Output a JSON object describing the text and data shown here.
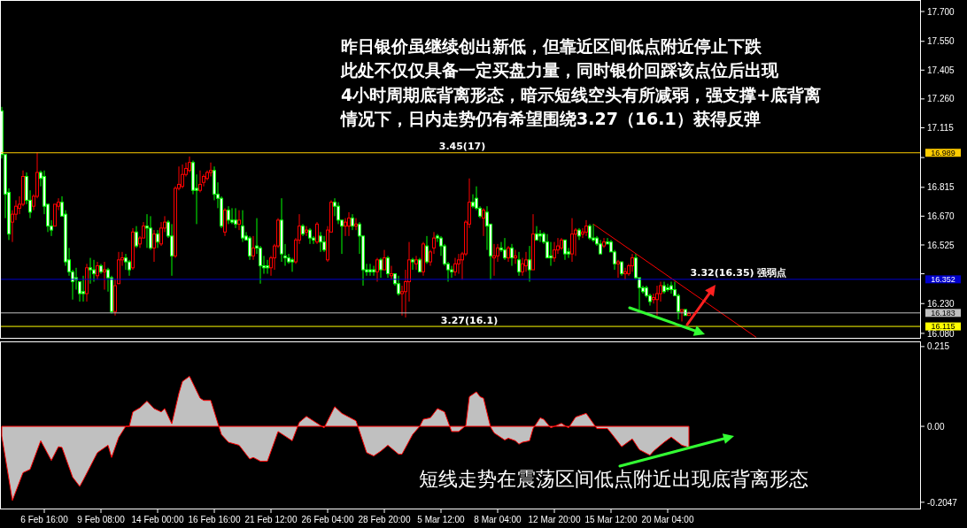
{
  "chart_data": [
    {
      "type": "candlestick",
      "categories": [
        null,
        null,
        null,
        null,
        null,
        null,
        null,
        null,
        null,
        null,
        null,
        null,
        null,
        null,
        null,
        null,
        null,
        null,
        null,
        null,
        null,
        null,
        null,
        null,
        null,
        null,
        null,
        null,
        null,
        null,
        null,
        null,
        null,
        null,
        null,
        null,
        null,
        null,
        null,
        null,
        null,
        null,
        null,
        null,
        null,
        null,
        null,
        null,
        null,
        null,
        null,
        null,
        null,
        null,
        null,
        null,
        null,
        null,
        null,
        null,
        null,
        null,
        null,
        null,
        null,
        null,
        null,
        null,
        null,
        null,
        null,
        null,
        null,
        null,
        null,
        null,
        null,
        null,
        null,
        null,
        null,
        null,
        null,
        null,
        null,
        null,
        null,
        null,
        null,
        null,
        null,
        null,
        null,
        null,
        null,
        null,
        null,
        null,
        null,
        null,
        null,
        null,
        null,
        null,
        null,
        null,
        null,
        null,
        null,
        null,
        null,
        null,
        null,
        null,
        null,
        null,
        null,
        null,
        null,
        null,
        null,
        null,
        null,
        null,
        null,
        null,
        null,
        null,
        null,
        null,
        null,
        null,
        null,
        null,
        null,
        null,
        null,
        null,
        null,
        null,
        null,
        null,
        null,
        null,
        null,
        null,
        null,
        null,
        null,
        null,
        null,
        null,
        null,
        null,
        null,
        null,
        null,
        null,
        null,
        null,
        null,
        null,
        null,
        null,
        null,
        null,
        null,
        null,
        null,
        null,
        null,
        null,
        null,
        null,
        null,
        null,
        null,
        null,
        null,
        null,
        null,
        null,
        null,
        null,
        null,
        null,
        null,
        null,
        null,
        null,
        null,
        null,
        null,
        null,
        null,
        null,
        null,
        null,
        null,
        null,
        null,
        null,
        null,
        null,
        null,
        null,
        null,
        null,
        null,
        null,
        null,
        null,
        null,
        null,
        null,
        null,
        null,
        null,
        null,
        null,
        null,
        null,
        null,
        null,
        null,
        null,
        null,
        null,
        null,
        null,
        null,
        null,
        null,
        null,
        null,
        null,
        null,
        null,
        null,
        null,
        null,
        null,
        null,
        null,
        null,
        null,
        null,
        null,
        null,
        null,
        null,
        null,
        null,
        null,
        null,
        null,
        null,
        null,
        null,
        null
      ],
      "ohlc": [
        [
          17.2,
          17.22,
          16.96,
          16.98
        ],
        [
          16.98,
          16.98,
          16.66,
          16.78
        ],
        [
          16.79,
          16.81,
          16.55,
          16.58
        ],
        [
          16.64,
          16.7,
          16.54,
          16.68
        ],
        [
          16.68,
          16.75,
          16.65,
          16.72
        ],
        [
          16.71,
          16.77,
          16.68,
          16.73
        ],
        [
          16.73,
          16.9,
          16.72,
          16.87
        ],
        [
          16.87,
          16.89,
          16.73,
          16.75
        ],
        [
          16.75,
          16.8,
          16.66,
          16.69
        ],
        [
          16.72,
          16.78,
          16.7,
          16.77
        ],
        [
          16.77,
          16.99,
          16.76,
          16.89
        ],
        [
          16.89,
          16.9,
          16.82,
          16.86
        ],
        [
          16.87,
          16.9,
          16.68,
          16.72
        ],
        [
          16.73,
          16.73,
          16.59,
          16.62
        ],
        [
          16.62,
          16.65,
          16.57,
          16.6
        ],
        [
          16.62,
          16.73,
          16.62,
          16.73
        ],
        [
          16.72,
          16.76,
          16.7,
          16.74
        ],
        [
          16.74,
          16.77,
          16.67,
          16.67
        ],
        [
          16.68,
          16.7,
          16.42,
          16.44
        ],
        [
          16.45,
          16.51,
          16.37,
          16.39
        ],
        [
          16.39,
          16.4,
          16.25,
          16.34
        ],
        [
          16.36,
          16.41,
          16.3,
          16.35
        ],
        [
          16.34,
          16.34,
          16.24,
          16.28
        ],
        [
          16.29,
          16.37,
          16.24,
          16.28
        ],
        [
          16.28,
          16.43,
          16.24,
          16.41
        ],
        [
          16.41,
          16.46,
          16.33,
          16.4
        ],
        [
          16.4,
          16.45,
          16.34,
          16.38
        ],
        [
          16.37,
          16.44,
          16.35,
          16.42
        ],
        [
          16.42,
          16.43,
          16.38,
          16.39
        ],
        [
          16.39,
          16.44,
          16.3,
          16.4
        ],
        [
          16.4,
          16.41,
          16.29,
          16.36
        ],
        [
          16.36,
          16.37,
          16.18,
          16.19
        ],
        [
          16.19,
          16.35,
          16.17,
          16.32
        ],
        [
          16.33,
          16.49,
          16.33,
          16.45
        ],
        [
          16.45,
          16.49,
          16.42,
          16.46
        ],
        [
          16.46,
          16.48,
          16.4,
          16.44
        ],
        [
          16.44,
          16.45,
          16.37,
          16.4
        ],
        [
          16.41,
          16.61,
          16.4,
          16.59
        ],
        [
          16.59,
          16.62,
          16.51,
          16.52
        ],
        [
          16.53,
          16.57,
          16.51,
          16.56
        ],
        [
          16.56,
          16.64,
          16.56,
          16.62
        ],
        [
          16.62,
          16.68,
          16.51,
          16.61
        ],
        [
          16.61,
          16.67,
          16.5,
          16.51
        ],
        [
          16.51,
          16.6,
          16.44,
          16.58
        ],
        [
          16.58,
          16.6,
          16.51,
          16.54
        ],
        [
          16.53,
          16.64,
          16.52,
          16.61
        ],
        [
          16.61,
          16.67,
          16.59,
          16.64
        ],
        [
          16.64,
          16.65,
          16.56,
          16.57
        ],
        [
          16.57,
          16.63,
          16.37,
          16.47
        ],
        [
          16.47,
          16.82,
          16.46,
          16.81
        ],
        [
          16.81,
          16.92,
          16.8,
          16.83
        ],
        [
          16.82,
          16.93,
          16.81,
          16.88
        ],
        [
          16.88,
          16.94,
          16.87,
          16.91
        ],
        [
          16.9,
          16.97,
          16.89,
          16.94
        ],
        [
          16.94,
          16.95,
          16.78,
          16.8
        ],
        [
          16.81,
          16.88,
          16.63,
          16.8
        ],
        [
          16.8,
          16.9,
          16.79,
          16.83
        ],
        [
          16.84,
          16.88,
          16.82,
          16.87
        ],
        [
          16.86,
          16.9,
          16.85,
          16.89
        ],
        [
          16.89,
          16.94,
          16.87,
          16.9
        ],
        [
          16.9,
          16.92,
          16.75,
          16.78
        ],
        [
          16.78,
          16.84,
          16.71,
          16.76
        ],
        [
          16.76,
          16.77,
          16.61,
          16.62
        ],
        [
          16.59,
          16.71,
          16.57,
          16.7
        ],
        [
          16.7,
          16.72,
          16.63,
          16.65
        ],
        [
          16.65,
          16.71,
          16.63,
          16.64
        ],
        [
          16.65,
          16.71,
          16.61,
          16.63
        ],
        [
          16.63,
          16.7,
          16.6,
          16.65
        ],
        [
          16.62,
          16.7,
          16.54,
          16.56
        ],
        [
          16.57,
          16.59,
          16.55,
          16.55
        ],
        [
          16.56,
          16.57,
          16.45,
          16.47
        ],
        [
          16.47,
          16.57,
          16.45,
          16.51
        ],
        [
          16.52,
          16.66,
          16.48,
          16.51
        ],
        [
          16.51,
          16.52,
          16.33,
          16.42
        ],
        [
          16.42,
          16.47,
          16.38,
          16.41
        ],
        [
          16.42,
          16.45,
          16.38,
          16.41
        ],
        [
          16.41,
          16.47,
          16.37,
          16.46
        ],
        [
          16.46,
          16.53,
          16.4,
          16.52
        ],
        [
          16.52,
          16.66,
          16.51,
          16.65
        ],
        [
          16.65,
          16.76,
          16.44,
          16.48
        ],
        [
          16.47,
          16.53,
          16.42,
          16.46
        ],
        [
          16.46,
          16.48,
          16.43,
          16.44
        ],
        [
          16.45,
          16.46,
          16.39,
          16.44
        ],
        [
          16.44,
          16.56,
          16.43,
          16.55
        ],
        [
          16.55,
          16.68,
          16.53,
          16.62
        ],
        [
          16.62,
          16.63,
          16.57,
          16.58
        ],
        [
          16.59,
          16.62,
          16.57,
          16.6
        ],
        [
          16.6,
          16.61,
          16.53,
          16.56
        ],
        [
          16.56,
          16.57,
          16.53,
          16.55
        ],
        [
          16.54,
          16.64,
          16.53,
          16.63
        ],
        [
          16.57,
          16.59,
          16.49,
          16.54
        ],
        [
          16.54,
          16.57,
          16.49,
          16.5
        ],
        [
          16.45,
          16.62,
          16.44,
          16.6
        ],
        [
          16.59,
          16.75,
          16.59,
          16.74
        ],
        [
          16.74,
          16.76,
          16.67,
          16.72
        ],
        [
          16.72,
          16.74,
          16.63,
          16.65
        ],
        [
          16.65,
          16.65,
          16.48,
          16.62
        ],
        [
          16.62,
          16.66,
          16.57,
          16.64
        ],
        [
          16.62,
          16.69,
          16.57,
          16.66
        ],
        [
          16.66,
          16.68,
          16.6,
          16.62
        ],
        [
          16.62,
          16.66,
          16.6,
          16.63
        ],
        [
          16.63,
          16.64,
          16.48,
          16.57
        ],
        [
          16.57,
          16.57,
          16.32,
          16.4
        ],
        [
          16.4,
          16.43,
          16.37,
          16.39
        ],
        [
          16.4,
          16.43,
          16.37,
          16.39
        ],
        [
          16.4,
          16.42,
          16.37,
          16.39
        ],
        [
          16.39,
          16.46,
          16.34,
          16.45
        ],
        [
          16.45,
          16.46,
          16.36,
          16.4
        ],
        [
          16.4,
          16.5,
          16.4,
          16.46
        ],
        [
          16.46,
          16.47,
          16.36,
          16.38
        ],
        [
          16.37,
          16.42,
          16.35,
          16.38
        ],
        [
          16.38,
          16.38,
          16.32,
          16.33
        ],
        [
          16.33,
          16.37,
          16.27,
          16.28
        ],
        [
          16.28,
          16.32,
          16.17,
          16.29
        ],
        [
          16.29,
          16.4,
          16.16,
          16.34
        ],
        [
          16.34,
          16.54,
          16.24,
          16.45
        ],
        [
          16.45,
          16.46,
          16.4,
          16.44
        ],
        [
          16.43,
          16.47,
          16.4,
          16.45
        ],
        [
          16.45,
          16.46,
          16.39,
          16.39
        ],
        [
          16.39,
          16.54,
          16.37,
          16.53
        ],
        [
          16.52,
          16.57,
          16.43,
          16.44
        ],
        [
          16.44,
          16.5,
          16.42,
          16.49
        ],
        [
          16.51,
          16.59,
          16.48,
          16.56
        ],
        [
          16.57,
          16.58,
          16.54,
          16.56
        ],
        [
          16.56,
          16.57,
          16.47,
          16.52
        ],
        [
          16.52,
          16.53,
          16.42,
          16.43
        ],
        [
          16.43,
          16.44,
          16.34,
          16.4
        ],
        [
          16.4,
          16.42,
          16.36,
          16.39
        ],
        [
          16.39,
          16.46,
          16.37,
          16.43
        ],
        [
          16.43,
          16.48,
          16.38,
          16.45
        ],
        [
          16.45,
          16.49,
          16.35,
          16.48
        ],
        [
          16.48,
          16.65,
          16.47,
          16.64
        ],
        [
          16.63,
          16.86,
          16.61,
          16.74
        ],
        [
          16.74,
          16.78,
          16.71,
          16.72
        ],
        [
          16.76,
          16.82,
          16.7,
          16.71
        ],
        [
          16.71,
          16.72,
          16.66,
          16.67
        ],
        [
          16.66,
          16.71,
          16.57,
          16.7
        ],
        [
          16.69,
          16.72,
          16.5,
          16.62
        ],
        [
          16.63,
          16.63,
          16.35,
          16.47
        ],
        [
          16.46,
          16.53,
          16.37,
          16.47
        ],
        [
          16.47,
          16.53,
          16.44,
          16.51
        ],
        [
          16.51,
          16.54,
          16.49,
          16.5
        ],
        [
          16.5,
          16.56,
          16.45,
          16.46
        ],
        [
          16.46,
          16.52,
          16.44,
          16.51
        ],
        [
          16.51,
          16.53,
          16.42,
          16.46
        ],
        [
          16.46,
          16.5,
          16.43,
          16.47
        ],
        [
          16.45,
          16.49,
          16.37,
          16.39
        ],
        [
          16.39,
          16.46,
          16.37,
          16.43
        ],
        [
          16.42,
          16.49,
          16.39,
          16.45
        ],
        [
          16.45,
          16.52,
          16.34,
          16.4
        ],
        [
          16.4,
          16.68,
          16.4,
          16.58
        ],
        [
          16.58,
          16.62,
          16.55,
          16.55
        ],
        [
          16.58,
          16.6,
          16.54,
          16.57
        ],
        [
          16.58,
          16.59,
          16.53,
          16.54
        ],
        [
          16.54,
          16.58,
          16.46,
          16.46
        ],
        [
          16.47,
          16.54,
          16.42,
          16.46
        ],
        [
          16.46,
          16.54,
          16.44,
          16.5
        ],
        [
          16.5,
          16.56,
          16.48,
          16.52
        ],
        [
          16.51,
          16.56,
          16.5,
          16.55
        ],
        [
          16.55,
          16.55,
          16.45,
          16.48
        ],
        [
          16.49,
          16.51,
          16.46,
          16.48
        ],
        [
          16.48,
          16.66,
          16.44,
          16.58
        ],
        [
          16.58,
          16.61,
          16.47,
          16.6
        ],
        [
          16.6,
          16.61,
          16.55,
          16.57
        ],
        [
          16.58,
          16.61,
          16.56,
          16.59
        ],
        [
          16.59,
          16.65,
          16.57,
          16.62
        ],
        [
          16.62,
          16.63,
          16.55,
          16.56
        ],
        [
          16.56,
          16.63,
          16.54,
          16.55
        ],
        [
          16.56,
          16.57,
          16.52,
          16.53
        ],
        [
          16.53,
          16.55,
          16.48,
          16.48
        ],
        [
          16.52,
          16.56,
          16.51,
          16.54
        ],
        [
          16.54,
          16.56,
          16.53,
          16.53
        ],
        [
          16.54,
          16.55,
          16.49,
          16.49
        ],
        [
          16.49,
          16.5,
          16.4,
          16.43
        ],
        [
          16.43,
          16.45,
          16.36,
          16.44
        ],
        [
          16.44,
          16.44,
          16.37,
          16.38
        ],
        [
          16.38,
          16.41,
          16.35,
          16.39
        ],
        [
          16.38,
          16.43,
          16.37,
          16.42
        ],
        [
          16.42,
          16.48,
          16.39,
          16.46
        ],
        [
          16.46,
          16.48,
          16.35,
          16.36
        ],
        [
          16.36,
          16.36,
          16.2,
          16.31
        ],
        [
          16.31,
          16.32,
          16.28,
          16.29
        ],
        [
          16.31,
          16.32,
          16.26,
          16.27
        ],
        [
          16.27,
          16.28,
          16.22,
          16.24
        ],
        [
          16.25,
          16.28,
          16.23,
          16.26
        ],
        [
          16.25,
          16.32,
          16.17,
          16.28
        ],
        [
          16.28,
          16.34,
          16.24,
          16.32
        ],
        [
          16.32,
          16.34,
          16.28,
          16.29
        ],
        [
          16.31,
          16.33,
          16.29,
          16.3
        ],
        [
          16.32,
          16.34,
          16.28,
          16.3
        ],
        [
          16.3,
          16.34,
          16.27,
          16.27
        ],
        [
          16.27,
          16.28,
          16.15,
          16.19
        ],
        [
          16.19,
          16.2,
          16.14,
          16.2
        ],
        [
          16.2,
          16.2,
          16.17,
          16.17
        ],
        [
          16.17,
          16.19,
          16.17,
          16.18
        ],
        null,
        null,
        null,
        null,
        null,
        null,
        null,
        null,
        null,
        null,
        null,
        null,
        null,
        null,
        null,
        null,
        null,
        null,
        null,
        null,
        null,
        null,
        null,
        null,
        null,
        null,
        null,
        null,
        null,
        null,
        null,
        null,
        null,
        null,
        null,
        null,
        null,
        null,
        null,
        null,
        null,
        null,
        null,
        null,
        null,
        null,
        null,
        null,
        null,
        null,
        null,
        null,
        null,
        null,
        null,
        null,
        null,
        null,
        null,
        null,
        null,
        null,
        null,
        null,
        null
      ],
      "ylim": [
        16.053,
        17.758
      ],
      "tick_labels": "y",
      "yticks": [
        {
          "value": 17.7,
          "label": "17.700"
        },
        {
          "value": 17.55,
          "label": "17.550"
        },
        17.405,
        {
          "value": 17.26,
          "label": "17.260"
        },
        17.115,
        {
          "value": 16.965,
          "label": null
        },
        16.815,
        {
          "value": 16.67,
          "label": "16.670"
        },
        16.525,
        {
          "value": 16.38,
          "label": null
        },
        {
          "value": 16.23,
          "label": "16.230"
        },
        {
          "value": 16.08,
          "label": "16.080"
        }
      ],
      "series": [
        {
          "type": "line",
          "color": "#ff0000",
          "values": [
            null,
            null,
            null,
            null,
            null,
            null,
            null,
            null,
            null,
            null,
            null,
            null,
            null,
            null,
            null,
            null,
            null,
            null,
            null,
            null,
            null,
            null,
            null,
            null,
            null,
            null,
            null,
            null,
            null,
            null,
            null,
            null,
            null,
            null,
            null,
            null,
            null,
            null,
            null,
            null,
            null,
            null,
            null,
            null,
            null,
            null,
            null,
            null,
            null,
            null,
            null,
            null,
            null,
            null,
            null,
            null,
            null,
            null,
            null,
            null,
            null,
            null,
            null,
            null,
            null,
            null,
            null,
            null,
            null,
            null,
            null,
            null,
            null,
            null,
            null,
            null,
            null,
            null,
            null,
            null,
            null,
            null,
            null,
            null,
            null,
            null,
            null,
            null,
            null,
            null,
            null,
            null,
            null,
            null,
            null,
            null,
            null,
            null,
            null,
            null,
            null,
            null,
            null,
            null,
            null,
            null,
            null,
            null,
            null,
            null,
            null,
            null,
            null,
            null,
            null,
            null,
            null,
            null,
            null,
            null,
            null,
            null,
            null,
            null,
            null,
            null,
            null,
            null,
            null,
            null,
            null,
            null,
            null,
            null,
            null,
            null,
            null,
            null,
            null,
            null,
            null,
            null,
            null,
            null,
            null,
            null,
            null,
            null,
            null,
            null,
            null,
            null,
            null,
            null,
            null,
            null,
            null,
            null,
            null,
            null,
            null,
            null,
            null,
            null,
            null,
            null,
            null,
            16.63,
            null,
            null,
            null,
            null,
            null,
            null,
            null,
            null,
            null,
            null,
            null,
            null,
            null,
            null,
            null,
            null,
            null,
            null,
            null,
            null,
            null,
            null,
            null,
            null,
            null,
            null,
            null,
            null,
            null,
            null,
            null,
            null,
            null,
            null,
            null,
            null,
            null,
            null,
            null,
            null,
            null,
            null,
            null,
            null,
            null,
            16.06,
            null,
            null,
            null,
            null,
            null,
            null,
            null,
            null,
            null,
            null,
            null,
            null,
            null,
            null,
            null,
            null,
            null,
            null,
            null,
            null,
            null,
            null,
            null,
            null,
            null,
            null,
            null,
            null,
            null,
            null,
            null,
            null,
            null,
            null,
            null,
            null,
            null,
            null,
            null,
            null,
            null,
            null,
            null,
            null,
            null,
            null
          ]
        }
      ],
      "ref_lines": [
        {
          "axis": "y",
          "value": 16.989,
          "label": "16.989",
          "color": "#ffcc00"
        },
        {
          "axis": "y",
          "value": 16.352,
          "label": "16.352",
          "color": "#0000cc"
        },
        {
          "axis": "y",
          "value": 16.183,
          "label": "16.183",
          "color": "#c0c0c0"
        },
        {
          "axis": "y",
          "value": 16.115,
          "label": "16.115",
          "color": "#ffff00"
        }
      ],
      "annotations": [
        "昨日银价虽继续创出新低，但靠近区间低点附近停止下跌",
        "此处不仅仅具备一定买盘力量，同时银价回踩该点位后出现",
        "4小时周期底背离形态，暗示短线空头有所减弱，强支撑+底背离",
        "情况下，日内走势仍有希望围绕3.27（16.1）获得反弹",
        {
          "text": "3.45(17)",
          "y": 16.989
        },
        {
          "text": "3.27(16.1)",
          "y": 16.115
        },
        {
          "text": "3.32(16.35) 强弱点",
          "y": 16.352
        }
      ]
    },
    {
      "type": "area",
      "series": [
        {
          "color": "#c0c0c0",
          "values": [
            -0.026,
            null,
            null,
            -0.2,
            null,
            null,
            -0.125,
            null,
            -0.116,
            null,
            null,
            -0.039,
            null,
            null,
            -0.092,
            null,
            -0.055,
            -0.057,
            null,
            null,
            -0.137,
            null,
            -0.162,
            -0.145,
            null,
            null,
            null,
            -0.071,
            null,
            null,
            -0.051,
            -0.084,
            null,
            -0.03,
            null,
            0,
            0,
            0.039,
            null,
            0.05,
            null,
            0.068,
            null,
            0.048,
            null,
            0.039,
            0.048,
            null,
            0.007,
            null,
            0.089,
            0.121,
            null,
            0.135,
            null,
            null,
            0.076,
            0.07,
            null,
            0.07,
            null,
            null,
            -0.022,
            null,
            -0.043,
            null,
            null,
            -0.051,
            null,
            null,
            -0.088,
            -0.084,
            null,
            -0.094,
            null,
            -0.094,
            null,
            null,
            -0.014,
            null,
            null,
            null,
            -0.039,
            null,
            0.011,
            null,
            0.027,
            null,
            null,
            null,
            null,
            -0.004,
            null,
            null,
            0.053,
            null,
            0.035,
            null,
            null,
            null,
            0.015,
            null,
            null,
            -0.071,
            null,
            -0.08,
            null,
            -0.067,
            null,
            -0.051,
            null,
            null,
            -0.075,
            -0.075,
            null,
            null,
            -0.022,
            null,
            0,
            0.019,
            null,
            0.023,
            null,
            0.048,
            null,
            0.039,
            null,
            -0.014,
            null,
            -0.014,
            null,
            0.002,
            0.08,
            null,
            0.093,
            0.08,
            0.076,
            null,
            -0.002,
            -0.018,
            null,
            null,
            -0.037,
            -0.032,
            null,
            -0.039,
            -0.048,
            -0.043,
            null,
            -0.039,
            -0.006,
            null,
            0.023,
            0.019,
            null,
            -0.004,
            null,
            null,
            0.008,
            null,
            -0.004,
            null,
            0.025,
            null,
            null,
            0.035,
            null,
            null,
            -0.006,
            null,
            null,
            -0.006,
            null,
            -0.03,
            null,
            -0.055,
            null,
            null,
            -0.034,
            null,
            -0.063,
            null,
            null,
            -0.078,
            -0.067,
            null,
            null,
            -0.043,
            null,
            -0.029,
            null,
            null,
            -0.051,
            null,
            -0.057,
            null,
            null,
            null,
            null,
            null,
            null,
            null,
            null,
            null,
            null,
            null,
            null,
            null,
            null,
            null,
            null,
            null,
            null,
            null,
            null,
            null,
            null,
            null,
            null,
            null,
            null,
            null,
            null,
            null,
            null,
            null,
            null,
            null,
            null,
            null,
            null,
            null,
            null,
            null,
            null,
            null,
            null,
            null,
            null,
            null,
            null,
            null,
            null,
            null,
            null,
            null,
            null,
            null,
            null,
            null,
            null,
            null,
            null,
            null,
            null,
            null,
            null,
            null,
            null,
            null
          ]
        }
      ],
      "categories": [
        null,
        null,
        null,
        null,
        null,
        null,
        null,
        null,
        null,
        null,
        null,
        null,
        "6 Feb 16:00",
        null,
        null,
        null,
        null,
        null,
        null,
        null,
        null,
        null,
        null,
        null,
        null,
        null,
        null,
        null,
        "9 Feb 08:00",
        null,
        null,
        null,
        null,
        null,
        null,
        null,
        null,
        null,
        null,
        null,
        null,
        null,
        null,
        null,
        "14 Feb 00:00",
        null,
        null,
        null,
        null,
        null,
        null,
        null,
        null,
        null,
        null,
        null,
        null,
        null,
        null,
        null,
        "16 Feb 16:00",
        null,
        null,
        null,
        null,
        null,
        null,
        null,
        null,
        null,
        null,
        null,
        null,
        null,
        null,
        null,
        "21 Feb 12:00",
        null,
        null,
        null,
        null,
        null,
        null,
        null,
        null,
        null,
        null,
        null,
        null,
        null,
        null,
        null,
        "26 Feb 04:00",
        null,
        null,
        null,
        null,
        null,
        null,
        null,
        null,
        null,
        null,
        null,
        null,
        null,
        null,
        null,
        "28 Feb 20:00",
        null,
        null,
        null,
        null,
        null,
        null,
        null,
        null,
        null,
        null,
        null,
        null,
        null,
        null,
        null,
        "5 Mar 12:00",
        null,
        null,
        null,
        null,
        null,
        null,
        null,
        null,
        null,
        null,
        null,
        null,
        null,
        null,
        null,
        "8 Mar 04:00",
        null,
        null,
        null,
        null,
        null,
        null,
        null,
        null,
        null,
        null,
        null,
        null,
        null,
        null,
        null,
        "12 Mar 20:00",
        null,
        null,
        null,
        null,
        null,
        null,
        null,
        null,
        null,
        null,
        null,
        null,
        null,
        null,
        null,
        "15 Mar 12:00",
        null,
        null,
        null,
        null,
        null,
        null,
        null,
        null,
        null,
        null,
        null,
        null,
        null,
        null,
        null,
        "20 Mar 04:00",
        null,
        null,
        null,
        null,
        null,
        null,
        null,
        null,
        null,
        null,
        null,
        null,
        null,
        null,
        null,
        null,
        null,
        null,
        null,
        null,
        null,
        null,
        null,
        null,
        null,
        null,
        null,
        null,
        null,
        null,
        null,
        null,
        null,
        null,
        null,
        null,
        null,
        null,
        null,
        null,
        null,
        null,
        null,
        null,
        null,
        null,
        null,
        null,
        null,
        null,
        null,
        null,
        null,
        null,
        null,
        null,
        null,
        null,
        null,
        null,
        null,
        null,
        null,
        null,
        null,
        null,
        null,
        null,
        null,
        null,
        null
      ],
      "ylim": [
        -0.224,
        0.229
      ],
      "yticks": [
        0.215,
        {
          "value": 0,
          "label": "0.00"
        },
        -0.2047
      ],
      "annotations": [
        "短线走势在震荡区间低点附近出现底背离形态"
      ]
    }
  ]
}
